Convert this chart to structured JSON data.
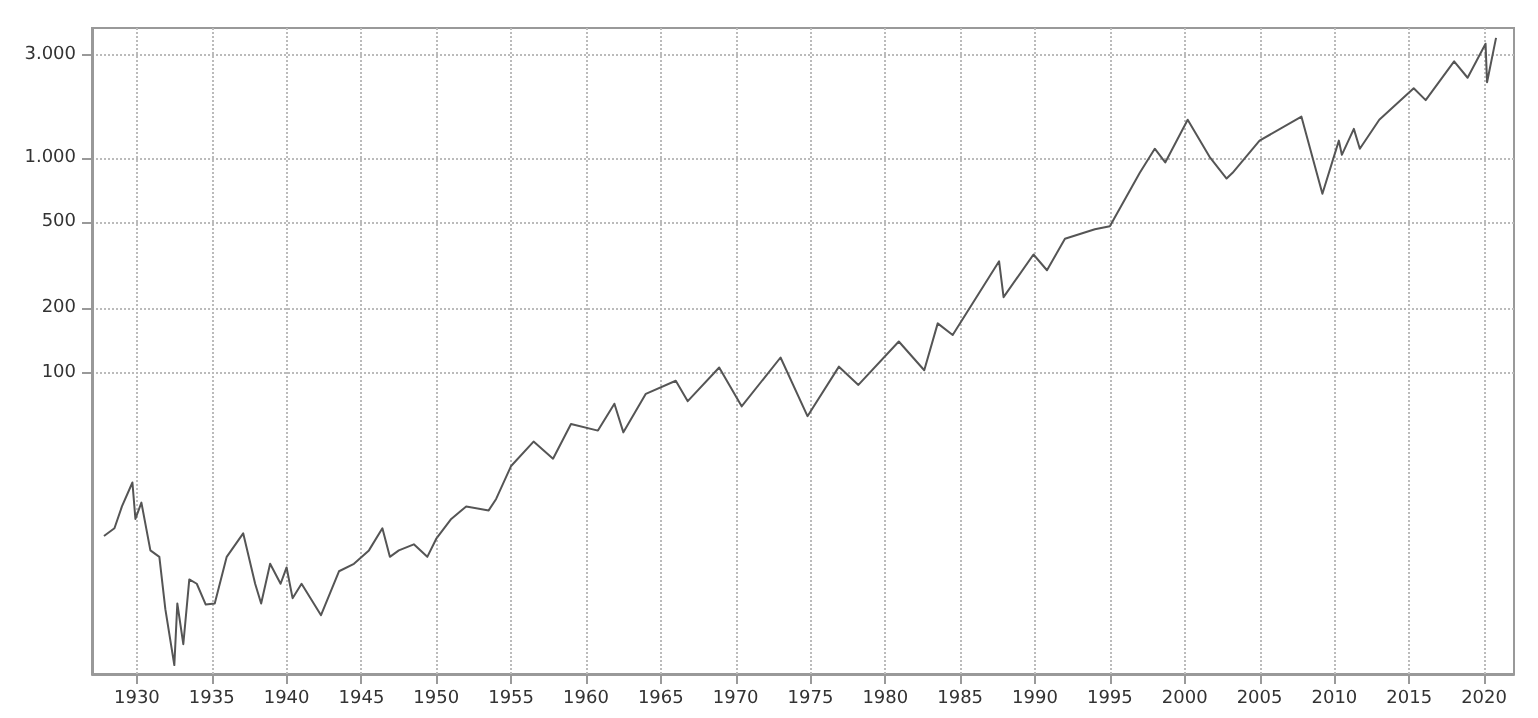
{
  "chart_data": {
    "type": "line",
    "color": "#555555",
    "log": "y",
    "grid": true,
    "marker": "none",
    "line_style": "solid",
    "x": [
      1927.8,
      1928.5,
      1929.0,
      1929.7,
      1929.9,
      1930.3,
      1930.9,
      1931.5,
      1931.9,
      1932.5,
      1932.7,
      1933.1,
      1933.5,
      1934.0,
      1934.6,
      1935.2,
      1936.0,
      1937.1,
      1937.9,
      1938.3,
      1938.9,
      1939.6,
      1940.0,
      1940.4,
      1941.0,
      1942.3,
      1943.5,
      1944.5,
      1945.5,
      1946.4,
      1946.9,
      1947.5,
      1948.5,
      1949.4,
      1950.0,
      1951.0,
      1952.0,
      1953.5,
      1954.0,
      1955.0,
      1956.5,
      1957.8,
      1959.0,
      1960.8,
      1961.9,
      1962.5,
      1964.0,
      1966.0,
      1966.8,
      1968.9,
      1970.4,
      1973.0,
      1974.8,
      1976.9,
      1978.2,
      1980.9,
      1982.6,
      1983.5,
      1984.5,
      1987.6,
      1987.9,
      1989.9,
      1990.8,
      1992.0,
      1994.0,
      1995.0,
      1997.0,
      1998.0,
      1998.7,
      2000.2,
      2001.7,
      2002.8,
      2003.2,
      2005.0,
      2007.8,
      2009.2,
      2010.3,
      2010.5,
      2011.3,
      2011.7,
      2013.0,
      2015.3,
      2016.1,
      2018.0,
      2018.9,
      2020.1,
      2020.2,
      2020.8
    ],
    "values": [
      17.5,
      19,
      24,
      31,
      21,
      25,
      15,
      14,
      8,
      4.4,
      8.5,
      5.5,
      11,
      10.5,
      8.4,
      8.5,
      14,
      18,
      10.5,
      8.5,
      13,
      10.5,
      12.5,
      9,
      10.5,
      7.5,
      12,
      13,
      15,
      19,
      14,
      15,
      16,
      14,
      17,
      21,
      24,
      23,
      26,
      37,
      48,
      40,
      58,
      54,
      72,
      53,
      80,
      92,
      74,
      106,
      70,
      118,
      63,
      107,
      88,
      140,
      103,
      170,
      150,
      330,
      225,
      355,
      300,
      420,
      465,
      480,
      850,
      1100,
      950,
      1500,
      1000,
      800,
      850,
      1200,
      1550,
      680,
      1200,
      1030,
      1360,
      1100,
      1500,
      2100,
      1850,
      2800,
      2350,
      3380,
      2240,
      3600
    ],
    "xlim": [
      1927,
      2022
    ],
    "xticks": [
      1930,
      1935,
      1940,
      1945,
      1950,
      1955,
      1960,
      1965,
      1970,
      1975,
      1980,
      1985,
      1990,
      1995,
      2000,
      2005,
      2010,
      2015,
      2020
    ],
    "ylim": [
      4,
      4000
    ],
    "yticks": [
      100,
      200,
      500,
      {
        "value": 1000,
        "label": "1.000"
      },
      {
        "value": 3000,
        "label": "3.000"
      }
    ]
  }
}
